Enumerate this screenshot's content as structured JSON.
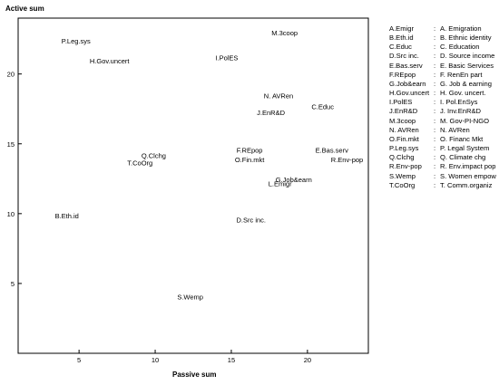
{
  "chart_data": {
    "type": "scatter",
    "xlabel": "Passive sum",
    "ylabel": "Active sum",
    "xlim": [
      1,
      24
    ],
    "ylim": [
      0,
      24
    ],
    "x_ticks": [
      5,
      10,
      15,
      20
    ],
    "y_ticks": [
      5,
      10,
      15,
      20
    ],
    "grid": false,
    "legend_position": "right",
    "points": [
      {
        "label": "M.3coop",
        "x": 18.5,
        "y": 22.9
      },
      {
        "label": "P.Leg.sys",
        "x": 4.8,
        "y": 22.3
      },
      {
        "label": "I.PolES",
        "x": 14.7,
        "y": 21.1
      },
      {
        "label": "H.Gov.uncert",
        "x": 7.0,
        "y": 20.9
      },
      {
        "label": "N. AVRen",
        "x": 18.1,
        "y": 18.4
      },
      {
        "label": "C.Educ",
        "x": 21.0,
        "y": 17.6
      },
      {
        "label": "J.EnR&D",
        "x": 17.6,
        "y": 17.2
      },
      {
        "label": "F.REpop",
        "x": 16.2,
        "y": 14.5
      },
      {
        "label": "E.Bas.serv",
        "x": 21.6,
        "y": 14.5
      },
      {
        "label": "Q.Clchg",
        "x": 9.9,
        "y": 14.1
      },
      {
        "label": "O.Fin.mkt",
        "x": 16.2,
        "y": 13.8
      },
      {
        "label": "R.Env-pop",
        "x": 22.6,
        "y": 13.8
      },
      {
        "label": "T.CoOrg",
        "x": 9.0,
        "y": 13.6
      },
      {
        "label": "G.Job&earn",
        "x": 19.1,
        "y": 12.4
      },
      {
        "label": "L.Emigr",
        "x": 18.2,
        "y": 12.1
      },
      {
        "label": "B.Eth.id",
        "x": 4.2,
        "y": 9.8
      },
      {
        "label": "D.Src inc.",
        "x": 16.3,
        "y": 9.5
      },
      {
        "label": "S.Wemp",
        "x": 12.3,
        "y": 4.0
      }
    ],
    "legend": [
      {
        "abbr": "A.Emigr",
        "full": "A. Emigration"
      },
      {
        "abbr": "B.Eth.id",
        "full": "B. Ethnic identity"
      },
      {
        "abbr": "C.Educ",
        "full": "C. Education"
      },
      {
        "abbr": "D.Src inc.",
        "full": "D. Source income"
      },
      {
        "abbr": "E.Bas.serv",
        "full": "E. Basic Services"
      },
      {
        "abbr": "F.REpop",
        "full": "F. RenEn part"
      },
      {
        "abbr": "G.Job&earn",
        "full": "G. Job & earning"
      },
      {
        "abbr": "H.Gov.uncert",
        "full": "H. Gov. uncert."
      },
      {
        "abbr": "I.PolES",
        "full": "I. Pol.EnSys"
      },
      {
        "abbr": "J.EnR&D",
        "full": "J. Inv.EnR&D"
      },
      {
        "abbr": "M.3coop",
        "full": "M. Gov-PI-NGO"
      },
      {
        "abbr": "N. AVRen",
        "full": "N. AVRen"
      },
      {
        "abbr": "O.Fin.mkt",
        "full": "O. Financ Mkt"
      },
      {
        "abbr": "P.Leg.sys",
        "full": "P. Legal System"
      },
      {
        "abbr": "Q.Clchg",
        "full": "Q. Climate chg"
      },
      {
        "abbr": "R.Env-pop",
        "full": "R. Env.impact pop"
      },
      {
        "abbr": "S.Wemp",
        "full": "S. Women empow"
      },
      {
        "abbr": "T.CoOrg",
        "full": "T. Comm.organiz"
      }
    ],
    "legend_separator": ":"
  }
}
